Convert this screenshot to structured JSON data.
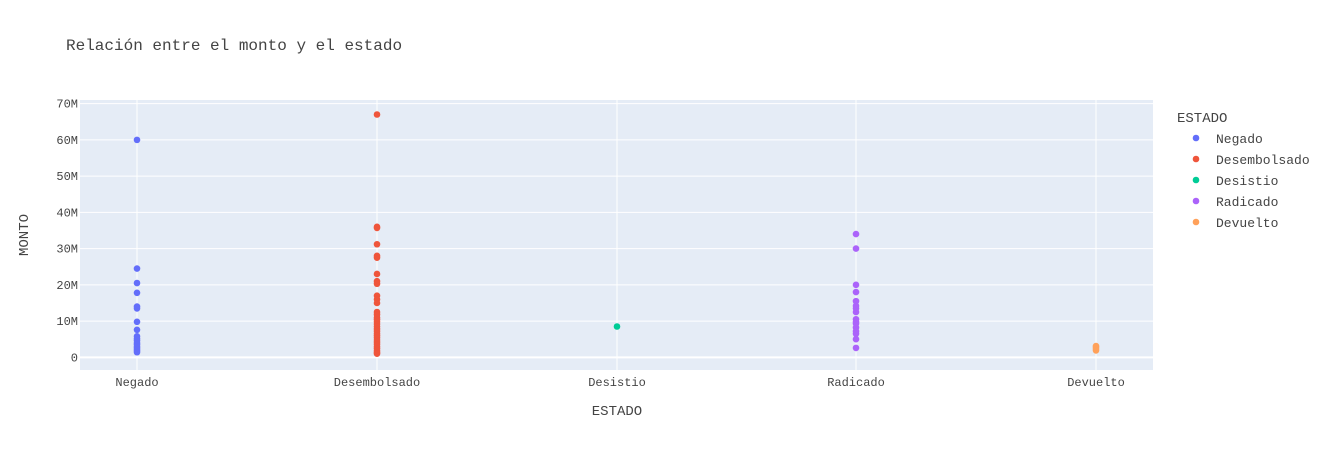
{
  "chart_data": {
    "type": "scatter",
    "title": "Relación entre el monto y el estado",
    "xlabel": "ESTADO",
    "ylabel": "MONTO",
    "categories": [
      "Negado",
      "Desembolsado",
      "Desistio",
      "Radicado",
      "Devuelto"
    ],
    "ylim": [
      -3.5,
      71
    ],
    "yticks": [
      0,
      10,
      20,
      30,
      40,
      50,
      60,
      70
    ],
    "ytick_labels": [
      "0",
      "10M",
      "20M",
      "30M",
      "40M",
      "50M",
      "60M",
      "70M"
    ],
    "grid": true,
    "legend": {
      "title": "ESTADO",
      "position": "right"
    },
    "series": [
      {
        "name": "Negado",
        "color": "#636efa",
        "category": "Negado",
        "values": [
          60,
          24.5,
          20.5,
          17.8,
          14,
          13.5,
          9.8,
          7.6,
          5.8,
          5.2,
          4.6,
          4,
          3.5,
          3,
          2.6,
          2.2,
          1.8,
          1.4
        ]
      },
      {
        "name": "Desembolsado",
        "color": "#ef553b",
        "category": "Desembolsado",
        "values": [
          67,
          36,
          35.7,
          31.2,
          28,
          27.5,
          23,
          21,
          20.3,
          17,
          16,
          15,
          12.5,
          11.8,
          11,
          10.4,
          9.8,
          9.2,
          8.5,
          7.8,
          7.2,
          6.6,
          6,
          5.4,
          4.8,
          4.2,
          3.6,
          3,
          2.4,
          1.8,
          1.3,
          1
        ]
      },
      {
        "name": "Desistio",
        "color": "#00cc96",
        "category": "Desistio",
        "values": [
          8.5
        ]
      },
      {
        "name": "Radicado",
        "color": "#ab63fa",
        "category": "Radicado",
        "values": [
          34,
          30,
          20,
          18,
          15.5,
          14.2,
          13.5,
          12.5,
          10.5,
          9.8,
          9.3,
          8.2,
          7.2,
          6.5,
          5,
          2.6
        ]
      },
      {
        "name": "Devuelto",
        "color": "#ffa15a",
        "category": "Devuelto",
        "values": [
          3.1,
          2.7,
          2.3,
          1.9
        ]
      }
    ]
  }
}
